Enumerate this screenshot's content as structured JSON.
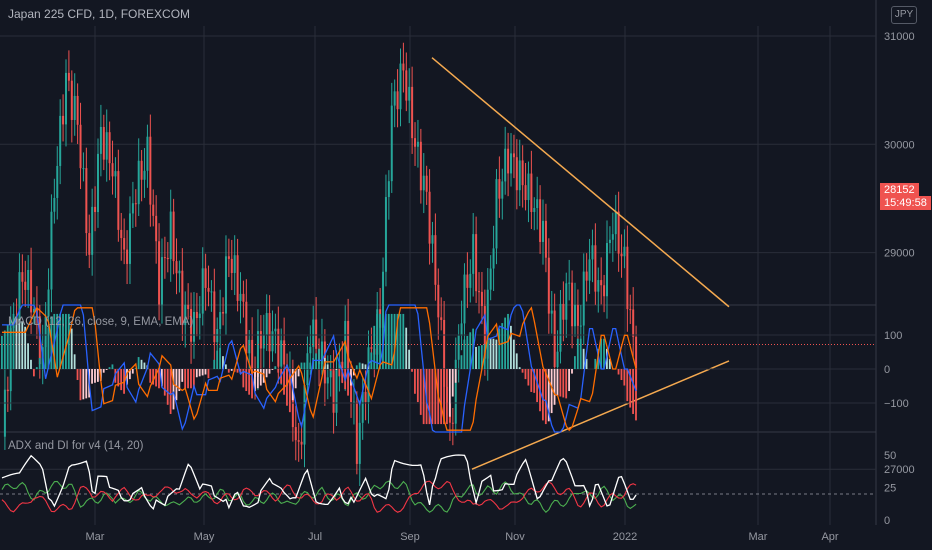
{
  "header": {
    "title": "Japan 225 CFD, 1D, FOREXCOM",
    "currency": "JPY"
  },
  "price_pane": {
    "current_price": "28152",
    "countdown": "15:49:58",
    "y_ticks": [
      "31000",
      "30000",
      "29000",
      "27000"
    ]
  },
  "macd_pane": {
    "label": "MACD (12, 26, close, 9, EMA, EMA)",
    "y_ticks": [
      "100",
      "0",
      "−100"
    ]
  },
  "adx_pane": {
    "label": "ADX and DI for v4 (14, 20)",
    "y_ticks": [
      "50",
      "25",
      "0"
    ]
  },
  "x_axis": {
    "ticks": [
      "Mar",
      "May",
      "Jul",
      "Sep",
      "Nov",
      "2022",
      "Mar",
      "Apr"
    ]
  },
  "colors": {
    "up": "#26a69a",
    "down": "#ef5350",
    "trendline": "#f4a950",
    "macd": "#2962ff",
    "signal": "#ff6d00",
    "adx_white": "#ffffff",
    "di_plus": "#4caf50",
    "di_minus": "#f23645"
  },
  "chart_data": {
    "type": "candlestick",
    "title": "Japan 225 CFD, 1D, FOREXCOM",
    "ylim": [
      26550,
      31350
    ],
    "current_price": 28152,
    "price_path": [
      [
        0,
        27300
      ],
      [
        3,
        28200
      ],
      [
        7,
        28800
      ],
      [
        10,
        28600
      ],
      [
        14,
        28000
      ],
      [
        18,
        29600
      ],
      [
        22,
        30600
      ],
      [
        26,
        30200
      ],
      [
        30,
        29000
      ],
      [
        34,
        30100
      ],
      [
        38,
        29800
      ],
      [
        42,
        28900
      ],
      [
        46,
        29600
      ],
      [
        50,
        29900
      ],
      [
        54,
        28700
      ],
      [
        58,
        29200
      ],
      [
        62,
        28500
      ],
      [
        66,
        28300
      ],
      [
        70,
        28800
      ],
      [
        74,
        28200
      ],
      [
        78,
        29000
      ],
      [
        82,
        28600
      ],
      [
        86,
        27900
      ],
      [
        90,
        28300
      ],
      [
        94,
        28200
      ],
      [
        98,
        27900
      ],
      [
        102,
        27100
      ],
      [
        106,
        28300
      ],
      [
        110,
        28000
      ],
      [
        114,
        27700
      ],
      [
        118,
        28200
      ],
      [
        122,
        27200
      ],
      [
        126,
        28000
      ],
      [
        130,
        28400
      ],
      [
        134,
        30300
      ],
      [
        138,
        30700
      ],
      [
        142,
        30000
      ],
      [
        146,
        29500
      ],
      [
        150,
        28500
      ],
      [
        154,
        27300
      ],
      [
        158,
        28500
      ],
      [
        162,
        29000
      ],
      [
        166,
        28200
      ],
      [
        170,
        29500
      ],
      [
        174,
        29900
      ],
      [
        178,
        29700
      ],
      [
        182,
        29500
      ],
      [
        186,
        29200
      ],
      [
        190,
        28000
      ],
      [
        194,
        28700
      ],
      [
        198,
        28300
      ],
      [
        202,
        29000
      ],
      [
        206,
        28600
      ],
      [
        210,
        29300
      ],
      [
        214,
        28900
      ],
      [
        218,
        27900
      ]
    ],
    "trendlines": [
      {
        "from": [
          "2021-09-14",
          30800
        ],
        "to": [
          "2022-02-18",
          28500
        ]
      },
      {
        "from": [
          "2021-10-06",
          27000
        ],
        "to": [
          "2022-02-18",
          28000
        ]
      }
    ]
  }
}
